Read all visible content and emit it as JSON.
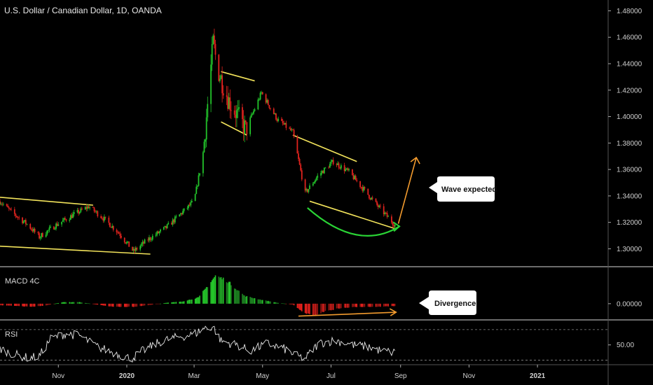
{
  "header": {
    "title": "U.S. Dollar / Canadian Dollar, 1D, OANDA"
  },
  "indicators": {
    "macd_label": "MACD 4C",
    "rsi_label": "RSI"
  },
  "annotations": {
    "wave_expected": "Wave expected",
    "divergence": "Divergence"
  },
  "colors": {
    "background": "#000000",
    "up": "#22c32a",
    "down": "#e0231e",
    "trendline": "#f2e35b",
    "projection": "#f39b2e",
    "curve": "#2ad435",
    "rsi_line": "#e8e8e8",
    "separator": "#d8d8d8"
  },
  "chart_data": [
    {
      "type": "candlestick",
      "title": "U.S. Dollar / Canadian Dollar, 1D, OANDA",
      "x_ticks": [
        "Nov",
        "2020",
        "Mar",
        "May",
        "Jul",
        "Sep",
        "Nov",
        "2021"
      ],
      "y_ticks": [
        "1.30000",
        "1.32000",
        "1.34000",
        "1.36000",
        "1.38000",
        "1.40000",
        "1.42000",
        "1.44000",
        "1.46000",
        "1.48000"
      ],
      "ylim": [
        1.287,
        1.485
      ],
      "x_range": [
        "2019-09-10",
        "2021-03-05"
      ],
      "last_date": "2020-08-27",
      "anchors": [
        [
          "2019-09-10",
          1.336
        ],
        [
          "2019-09-20",
          1.328
        ],
        [
          "2019-10-05",
          1.318
        ],
        [
          "2019-10-15",
          1.309
        ],
        [
          "2019-10-30",
          1.318
        ],
        [
          "2019-11-15",
          1.326
        ],
        [
          "2019-11-28",
          1.332
        ],
        [
          "2019-12-10",
          1.324
        ],
        [
          "2019-12-25",
          1.312
        ],
        [
          "2020-01-07",
          1.298
        ],
        [
          "2020-01-20",
          1.307
        ],
        [
          "2020-02-05",
          1.316
        ],
        [
          "2020-02-20",
          1.328
        ],
        [
          "2020-03-01",
          1.336
        ],
        [
          "2020-03-09",
          1.372
        ],
        [
          "2020-03-18",
          1.456
        ],
        [
          "2020-03-22",
          1.436
        ],
        [
          "2020-04-01",
          1.412
        ],
        [
          "2020-04-16",
          1.39
        ],
        [
          "2020-04-30",
          1.418
        ],
        [
          "2020-05-14",
          1.398
        ],
        [
          "2020-05-28",
          1.388
        ],
        [
          "2020-06-08",
          1.342
        ],
        [
          "2020-06-20",
          1.356
        ],
        [
          "2020-07-03",
          1.366
        ],
        [
          "2020-07-17",
          1.358
        ],
        [
          "2020-07-30",
          1.345
        ],
        [
          "2020-08-12",
          1.332
        ],
        [
          "2020-08-27",
          1.318
        ]
      ],
      "trendlines": [
        {
          "from": [
            "2019-09-10",
            1.339
          ],
          "to": [
            "2019-12-02",
            1.333
          ]
        },
        {
          "from": [
            "2019-09-10",
            1.302
          ],
          "to": [
            "2020-01-22",
            1.296
          ]
        },
        {
          "from": [
            "2020-03-25",
            1.434
          ],
          "to": [
            "2020-04-24",
            1.427
          ]
        },
        {
          "from": [
            "2020-03-25",
            1.396
          ],
          "to": [
            "2020-04-17",
            1.386
          ]
        },
        {
          "from": [
            "2020-05-28",
            1.386
          ],
          "to": [
            "2020-07-24",
            1.366
          ]
        },
        {
          "from": [
            "2020-06-12",
            1.336
          ],
          "to": [
            "2020-08-28",
            1.315
          ]
        }
      ],
      "projection": {
        "from": [
          "2020-08-30",
          1.319
        ],
        "to": [
          "2020-09-15",
          1.369
        ]
      },
      "curve": {
        "from": [
          "2020-06-10",
          1.331
        ],
        "via": [
          "2020-07-25",
          1.307
        ],
        "to": [
          "2020-08-31",
          1.317
        ]
      }
    },
    {
      "type": "bar",
      "title": "MACD 4C",
      "y_ticks": [
        "0.00000"
      ],
      "ylim": [
        -0.02,
        0.045
      ],
      "anchors": [
        [
          "2019-09-10",
          -0.002
        ],
        [
          "2019-09-25",
          -0.003
        ],
        [
          "2019-10-10",
          -0.004
        ],
        [
          "2019-10-22",
          -0.002
        ],
        [
          "2019-11-05",
          0.002
        ],
        [
          "2019-11-20",
          0.002
        ],
        [
          "2019-12-05",
          -0.001
        ],
        [
          "2019-12-20",
          -0.004
        ],
        [
          "2020-01-07",
          -0.004
        ],
        [
          "2020-01-20",
          -0.002
        ],
        [
          "2020-02-05",
          0.001
        ],
        [
          "2020-02-20",
          0.003
        ],
        [
          "2020-03-05",
          0.008
        ],
        [
          "2020-03-20",
          0.036
        ],
        [
          "2020-03-30",
          0.03
        ],
        [
          "2020-04-15",
          0.01
        ],
        [
          "2020-04-30",
          0.005
        ],
        [
          "2020-05-15",
          0.001
        ],
        [
          "2020-05-28",
          -0.001
        ],
        [
          "2020-06-05",
          -0.01
        ],
        [
          "2020-06-15",
          -0.016
        ],
        [
          "2020-06-25",
          -0.01
        ],
        [
          "2020-07-08",
          -0.006
        ],
        [
          "2020-07-25",
          -0.004
        ],
        [
          "2020-08-10",
          -0.004
        ],
        [
          "2020-08-27",
          -0.003
        ]
      ],
      "divergence_line": {
        "from": [
          "2020-06-02",
          -0.016
        ],
        "to": [
          "2020-08-28",
          -0.011
        ]
      }
    },
    {
      "type": "line",
      "title": "RSI",
      "y_ticks": [
        "50.00"
      ],
      "ylim": [
        25,
        80
      ],
      "bands": [
        30,
        70
      ],
      "anchors": [
        [
          "2019-09-10",
          45
        ],
        [
          "2019-09-22",
          38
        ],
        [
          "2019-10-05",
          33
        ],
        [
          "2019-10-15",
          35
        ],
        [
          "2019-10-25",
          58
        ],
        [
          "2019-11-08",
          65
        ],
        [
          "2019-11-20",
          62
        ],
        [
          "2019-12-05",
          48
        ],
        [
          "2019-12-20",
          40
        ],
        [
          "2020-01-05",
          32
        ],
        [
          "2020-01-15",
          42
        ],
        [
          "2020-02-01",
          55
        ],
        [
          "2020-02-15",
          60
        ],
        [
          "2020-03-01",
          64
        ],
        [
          "2020-03-10",
          72
        ],
        [
          "2020-03-18",
          74
        ],
        [
          "2020-03-25",
          55
        ],
        [
          "2020-04-08",
          50
        ],
        [
          "2020-04-20",
          42
        ],
        [
          "2020-05-05",
          52
        ],
        [
          "2020-05-20",
          45
        ],
        [
          "2020-06-01",
          35
        ],
        [
          "2020-06-08",
          32
        ],
        [
          "2020-06-20",
          52
        ],
        [
          "2020-07-05",
          56
        ],
        [
          "2020-07-20",
          50
        ],
        [
          "2020-08-05",
          47
        ],
        [
          "2020-08-15",
          42
        ],
        [
          "2020-08-27",
          40
        ]
      ]
    }
  ]
}
